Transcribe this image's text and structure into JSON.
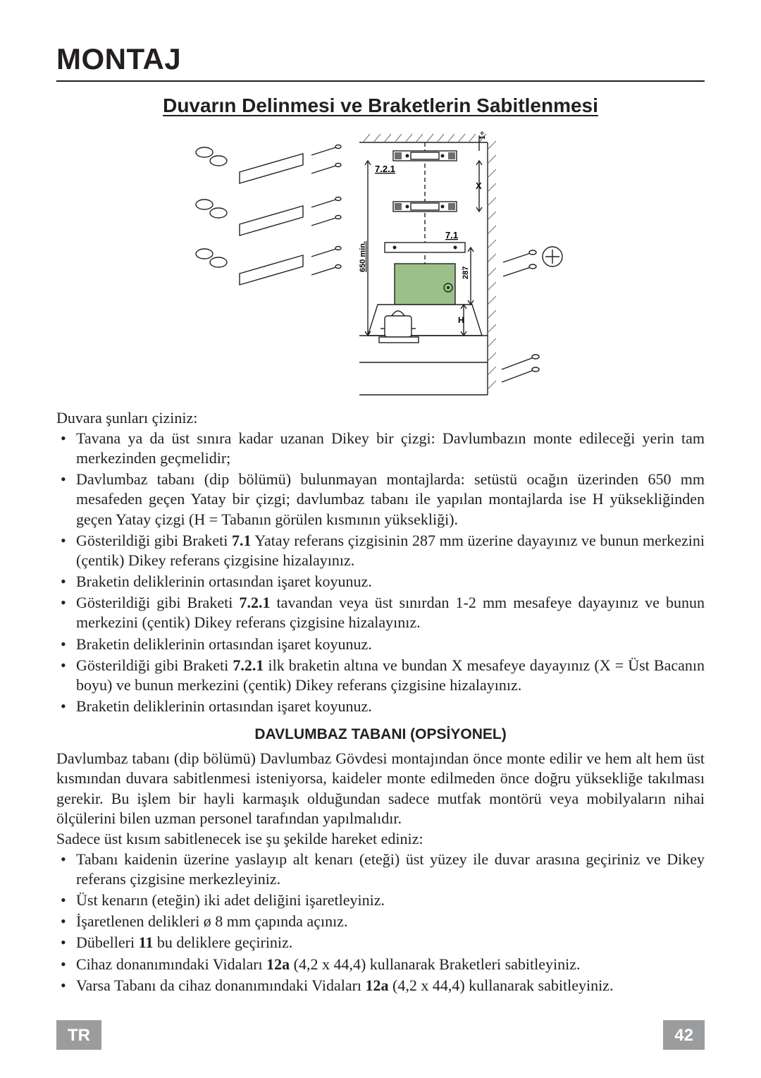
{
  "title": "MONTAJ",
  "subtitle": "Duvarın Delinmesi ve Braketlerin Sabitlenmesi",
  "diagram": {
    "labels": {
      "top_gap": "1÷2",
      "bracket_top": "7.2.1",
      "x_gap": "X",
      "bracket_mid": "7.1",
      "dim_287": "287",
      "dim_650": "650 min.",
      "dim_H": "H"
    },
    "colors": {
      "stroke": "#231f20",
      "hood_fill": "#9cc08a",
      "bg": "#ffffff",
      "hatch": "#6d6e71"
    },
    "line_width": 1.4
  },
  "intro1": "Duvara şunları çiziniz:",
  "bullets1": [
    "Tavana ya da üst sınıra kadar uzanan Dikey bir çizgi: Davlumbazın monte edileceği yerin tam merkezinden geçmelidir;",
    "Davlumbaz tabanı (dip bölümü) bulunmayan montajlarda: setüstü ocağın üzerinden 650 mm mesafeden geçen Yatay bir çizgi; davlumbaz tabanı ile yapılan montajlarda ise H yüksekliğinden geçen Yatay çizgi (H = Tabanın görülen kısmının yüksekliği).",
    "Gösterildiği gibi Braketi <b>7.1</b> Yatay referans çizgisinin 287 mm üzerine dayayınız ve bunun merkezini  (çentik) Dikey referans çizgisine hizalayınız.",
    "Braketin deliklerinin ortasından işaret koyunuz.",
    "Gösterildiği gibi Braketi <b>7.2.1</b> tavandan veya üst sınırdan 1-2 mm mesafeye dayayınız ve bunun merkezini  (çentik) Dikey referans çizgisine hizalayınız.",
    "Braketin deliklerinin ortasından işaret koyunuz.",
    "Gösterildiği gibi Braketi <b>7.2.1</b> ilk braketin altına ve bundan X mesafeye dayayınız (X = Üst Bacanın boyu) ve bunun merkezini  (çentik) Dikey referans çizgisine hizalayınız.",
    "Braketin deliklerinin ortasından işaret koyunuz."
  ],
  "sec_heading": "DAVLUMBAZ TABANI (OPSİYONEL)",
  "para2": "Davlumbaz tabanı (dip bölümü) Davlumbaz Gövdesi montajından önce monte edilir ve hem alt hem üst kısmından duvara sabitlenmesi isteniyorsa, kaideler monte edilmeden önce doğru yüksekliğe takılması gerekir. Bu işlem bir hayli karmaşık olduğundan sadece mutfak montörü veya mobilyaların nihai ölçülerini bilen uzman personel tarafından yapılmalıdır.",
  "intro2": "Sadece üst kısım sabitlenecek ise şu şekilde hareket ediniz:",
  "bullets2": [
    "Tabanı kaidenin üzerine yaslayıp alt kenarı (eteği) üst yüzey ile duvar arasına geçiriniz ve Dikey referans çizgisine merkezleyiniz.",
    "Üst kenarın (eteğin) iki adet deliğini işaretleyiniz.",
    "İşaretlenen delikleri ø 8 mm çapında açınız.",
    "Dübelleri <b>11</b> bu deliklere geçiriniz.",
    "Cihaz donanımındaki Vidaları <b>12a</b> (4,2 x 44,4) kullanarak Braketleri sabitleyiniz.",
    "Varsa Tabanı da cihaz donanımındaki Vidaları <b>12a</b> (4,2 x 44,4) kullanarak sabitleyiniz."
  ],
  "footer": {
    "lang": "TR",
    "page": "42"
  }
}
